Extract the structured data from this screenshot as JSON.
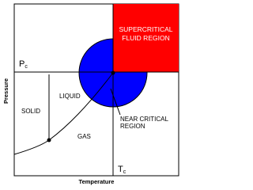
{
  "title_region": [
    "SUPERCRITICAL",
    "FLUID REGION"
  ],
  "pc": {
    "main": "P",
    "sub": "c"
  },
  "tc": {
    "main": "T",
    "sub": "c"
  },
  "solid": "SOLID",
  "liquid": "LIQUID",
  "gas": "GAS",
  "near_critical": [
    "NEAR CRITICAL",
    "REGION"
  ],
  "y_axis": "Pressure",
  "x_axis": "Temperature"
}
